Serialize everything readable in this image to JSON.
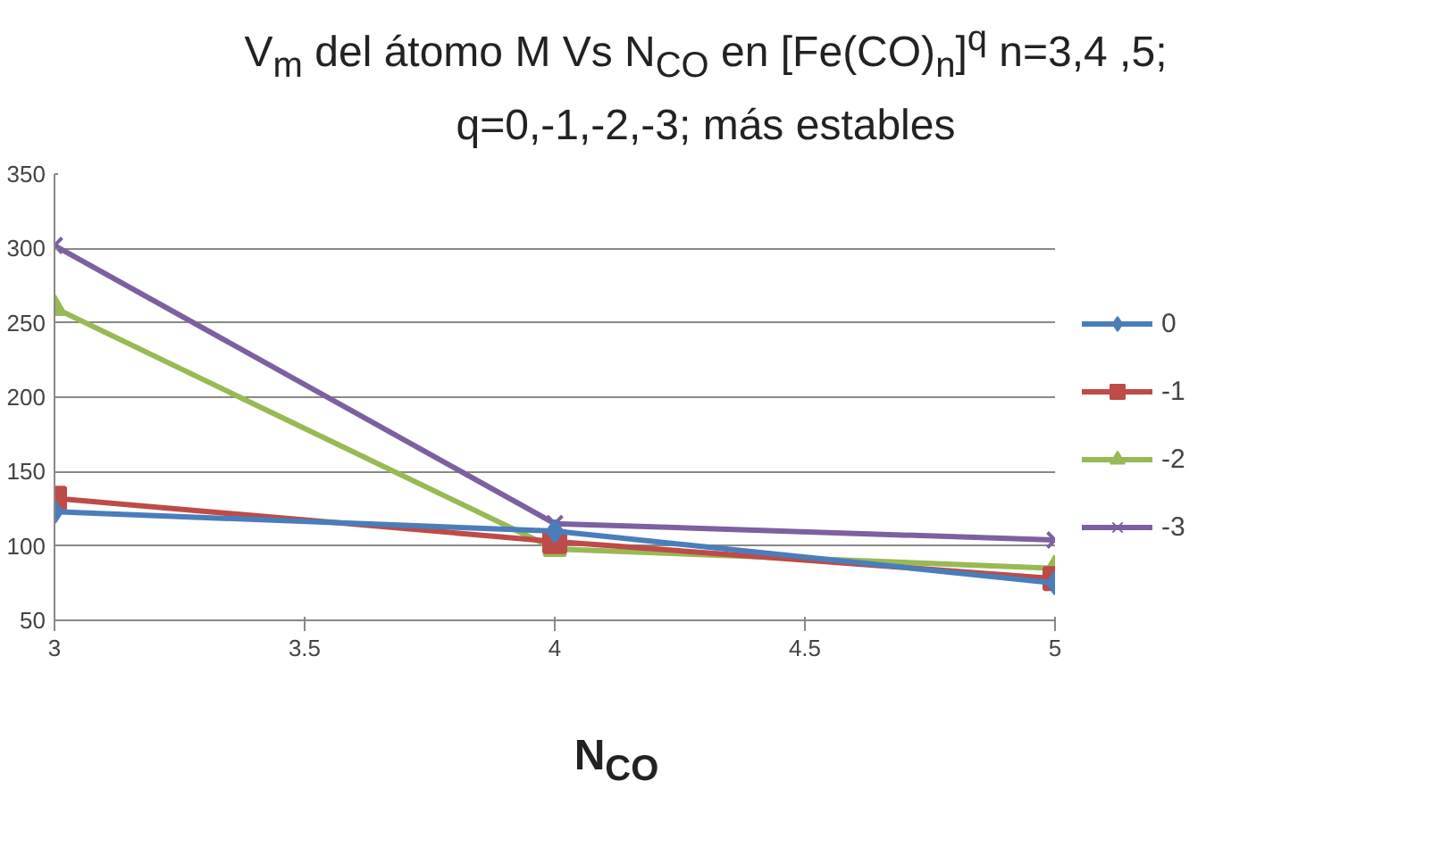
{
  "chart_data": {
    "type": "line",
    "title": "V$_{m}$ del átomo M Vs N$_{CO}$ en [Fe(CO)$_{n}$]$^{q}$ n=3,4 ,5; q=0,-1,-2,-3; más estables",
    "xlabel": "N$_{CO}$",
    "x": [
      3,
      4,
      5
    ],
    "xlim": [
      3,
      5
    ],
    "xticks": [
      3,
      3.5,
      4,
      4.5,
      5
    ],
    "ylim": [
      50,
      350
    ],
    "yticks": [
      50,
      100,
      150,
      200,
      250,
      300,
      350
    ],
    "grid": "y",
    "legend": "right",
    "series": [
      {
        "name": "0",
        "color": "#4a7ebb",
        "marker": "diamond",
        "values": [
          123,
          110,
          75
        ]
      },
      {
        "name": "-1",
        "color": "#be4b48",
        "marker": "square",
        "values": [
          132,
          103,
          78
        ]
      },
      {
        "name": "-2",
        "color": "#98b954",
        "marker": "triangle",
        "values": [
          260,
          98,
          85
        ]
      },
      {
        "name": "-3",
        "color": "#7d60a0",
        "marker": "cross",
        "values": [
          302,
          115,
          104
        ]
      }
    ]
  }
}
